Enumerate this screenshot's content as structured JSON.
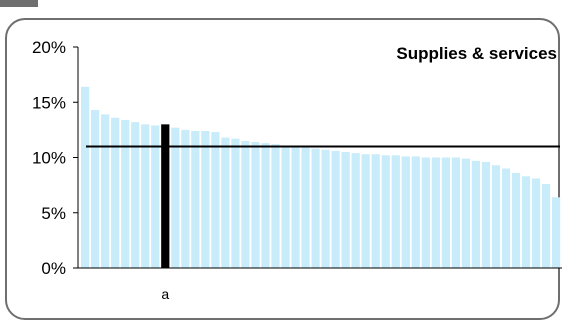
{
  "chart_data": {
    "type": "bar",
    "title": "Supplies & services",
    "xlabel": "",
    "ylabel": "",
    "ylim": [
      0,
      20
    ],
    "yticks": [
      "0%",
      "5%",
      "10%",
      "15%",
      "20%"
    ],
    "values": [
      16.4,
      14.3,
      13.9,
      13.6,
      13.4,
      13.2,
      13.0,
      12.9,
      13.0,
      12.7,
      12.5,
      12.4,
      12.4,
      12.3,
      11.8,
      11.7,
      11.5,
      11.4,
      11.3,
      11.2,
      11.0,
      11.0,
      10.9,
      10.8,
      10.7,
      10.6,
      10.5,
      10.4,
      10.3,
      10.3,
      10.2,
      10.2,
      10.1,
      10.1,
      10.0,
      10.0,
      10.0,
      10.0,
      9.9,
      9.7,
      9.6,
      9.3,
      9.0,
      8.6,
      8.3,
      8.1,
      7.6,
      6.4
    ],
    "highlight_index": 8,
    "highlight_label": "a",
    "reference_value": 11.0,
    "bar_color": "#c9ecfa",
    "highlight_color": "#000000",
    "grid": false,
    "legend": "none"
  }
}
